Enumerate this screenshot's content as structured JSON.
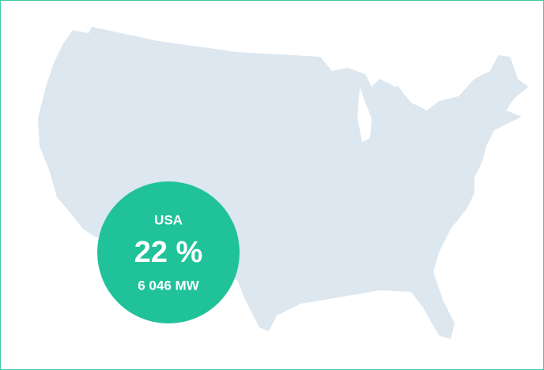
{
  "region": {
    "label": "USA",
    "share": "22 %",
    "capacity": "6 046 MW"
  }
}
